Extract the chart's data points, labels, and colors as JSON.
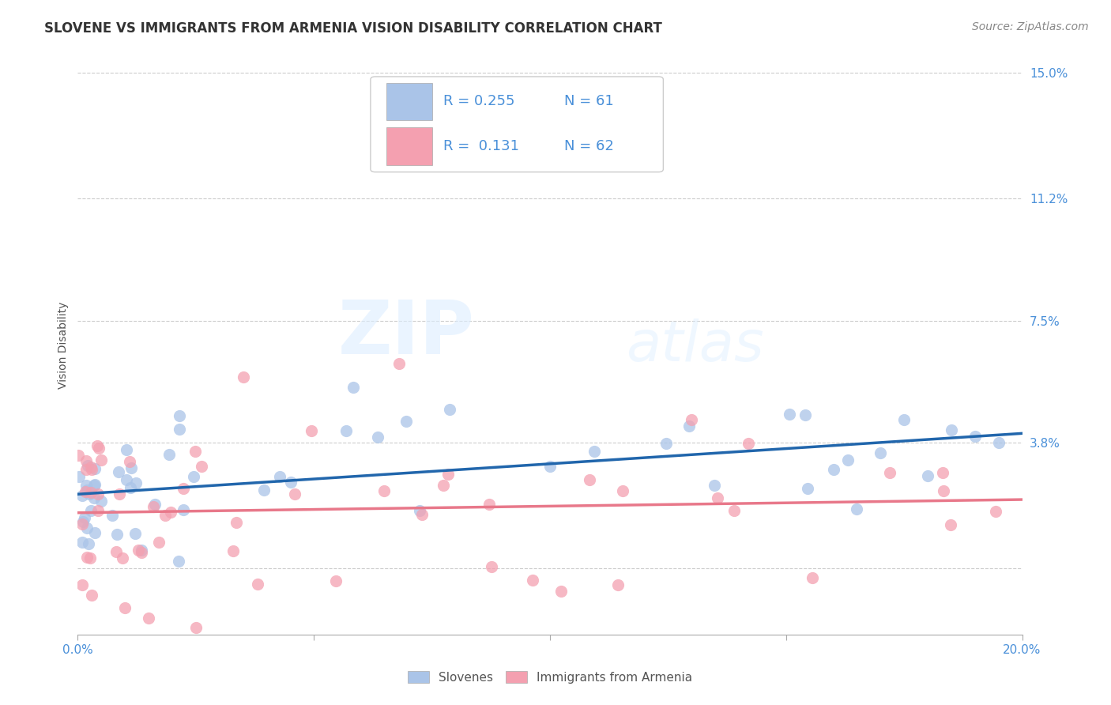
{
  "title": "SLOVENE VS IMMIGRANTS FROM ARMENIA VISION DISABILITY CORRELATION CHART",
  "source": "Source: ZipAtlas.com",
  "ylabel": "Vision Disability",
  "xlim": [
    0.0,
    0.2
  ],
  "ylim": [
    -0.02,
    0.155
  ],
  "ytick_vals": [
    0.0,
    0.038,
    0.075,
    0.112,
    0.15
  ],
  "ytick_labels": [
    "",
    "3.8%",
    "7.5%",
    "11.2%",
    "15.0%"
  ],
  "xtick_vals": [
    0.0,
    0.05,
    0.1,
    0.15,
    0.2
  ],
  "xtick_labels": [
    "0.0%",
    "",
    "",
    "",
    "20.0%"
  ],
  "grid_color": "#cccccc",
  "background_color": "#ffffff",
  "slovene_color": "#aac4e8",
  "armenia_color": "#f4a0b0",
  "slovene_line_color": "#2166ac",
  "armenia_line_color": "#e8788a",
  "label_color": "#4a90d9",
  "tick_label_color": "#4a90d9",
  "R_slovene": 0.255,
  "N_slovene": 61,
  "R_armenia": 0.131,
  "N_armenia": 62,
  "legend_label_1": "Slovenes",
  "legend_label_2": "Immigrants from Armenia",
  "watermark_zip": "ZIP",
  "watermark_atlas": "atlas",
  "title_fontsize": 12,
  "axis_label_fontsize": 10,
  "tick_fontsize": 11,
  "legend_fontsize": 13,
  "source_fontsize": 10
}
